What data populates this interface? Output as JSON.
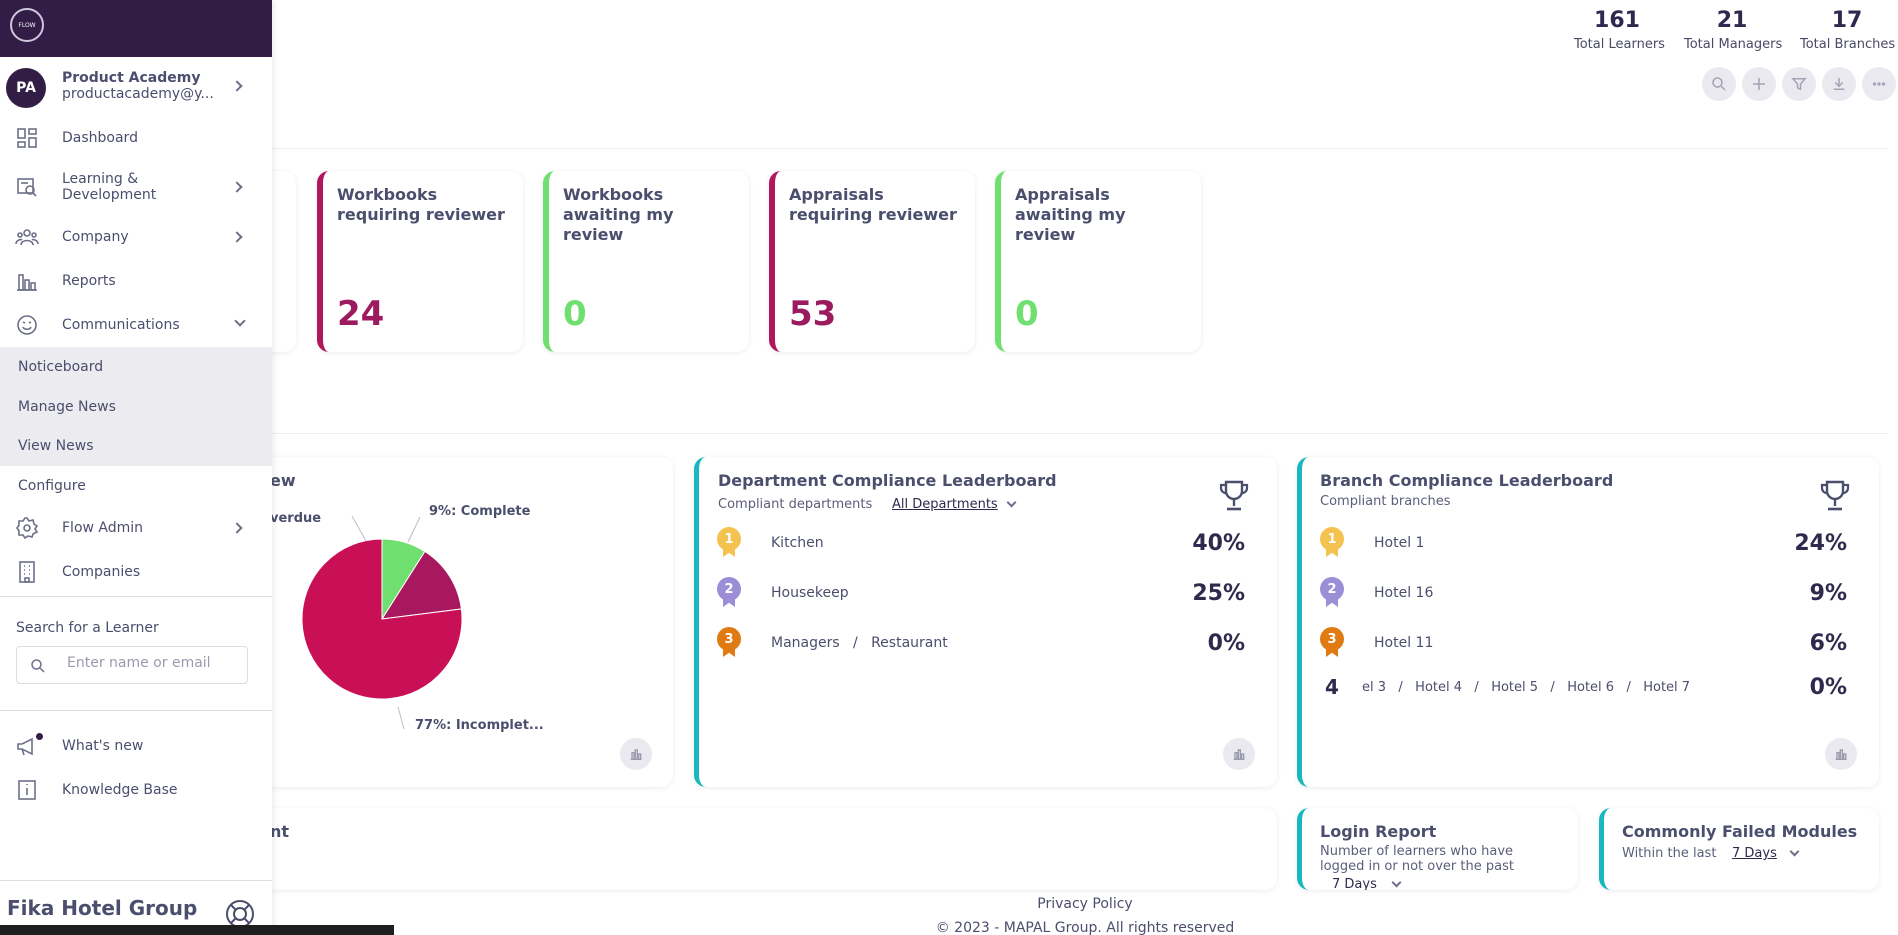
{
  "stats": [
    {
      "value": "161",
      "label": "Total Learners"
    },
    {
      "value": "21",
      "label": "Total Managers"
    },
    {
      "value": "17",
      "label": "Total Branches"
    }
  ],
  "kpis": [
    {
      "title": "Workbooks requiring reviewer",
      "value": "24",
      "color": "#9b1b5e"
    },
    {
      "title": "Workbooks awaiting my review",
      "value": "0",
      "color": "#6fe06f"
    },
    {
      "title": "Appraisals requiring reviewer",
      "value": "53",
      "color": "#9b1b5e"
    },
    {
      "title": "Appraisals awaiting my review",
      "value": "0",
      "color": "#6fe06f"
    }
  ],
  "overview": {
    "title": "ew",
    "labels": {
      "overdue": "verdue",
      "complete": "9%: Complete",
      "incomplete": "77%: Incomplet..."
    }
  },
  "chart_data": {
    "type": "pie",
    "slices": [
      {
        "label": "Complete",
        "value": 9,
        "color": "#6fe06f"
      },
      {
        "label": "Overdue",
        "value": 14,
        "color": "#a8185f"
      },
      {
        "label": "Incomplete",
        "value": 77,
        "color": "#c90f55"
      }
    ]
  },
  "dept": {
    "title": "Department Compliance Leaderboard",
    "subtitle": "Compliant departments",
    "filter": "All Departments",
    "rows": [
      {
        "rank": "1",
        "name": "Kitchen",
        "pct": "40%"
      },
      {
        "rank": "2",
        "name": "Housekeep",
        "pct": "25%"
      },
      {
        "rank": "3",
        "name": "Managers   /   Restaurant",
        "pct": "0%"
      }
    ]
  },
  "branch": {
    "title": "Branch Compliance Leaderboard",
    "subtitle": "Compliant branches",
    "rows": [
      {
        "rank": "1",
        "name": "Hotel 1",
        "pct": "24%"
      },
      {
        "rank": "2",
        "name": "Hotel 16",
        "pct": "9%"
      },
      {
        "rank": "3",
        "name": "Hotel 11",
        "pct": "6%"
      },
      {
        "rank": "4",
        "name": "el 3   /   Hotel 4   /   Hotel 5   /   Hotel 6   /   Hotel 7",
        "pct": "0%"
      }
    ]
  },
  "bottom": {
    "left_title": "nt",
    "login": {
      "title": "Login Report",
      "subtitle": "Number of learners who have logged in or not over the past",
      "filter": "7 Days"
    },
    "failed": {
      "title": "Commonly Failed Modules",
      "subtitle": "Within the last",
      "filter": "7 Days"
    }
  },
  "footer": {
    "privacy": "Privacy Policy",
    "copyright": "© 2023 - MAPAL Group. All rights reserved"
  },
  "sidebar": {
    "logo_text": "FLOW",
    "user": {
      "initials": "PA",
      "name": "Product Academy",
      "email": "productacademy@y..."
    },
    "nav": [
      {
        "label": "Dashboard",
        "icon": "dashboard-icon"
      },
      {
        "label": "Learning & Development",
        "icon": "learning-icon"
      },
      {
        "label": "Company",
        "icon": "people-icon"
      },
      {
        "label": "Reports",
        "icon": "bar-chart-icon"
      },
      {
        "label": "Communications",
        "icon": "smiley-icon"
      }
    ],
    "comms_sub": [
      "Noticeboard",
      "Manage News",
      "View News",
      "Configure"
    ],
    "nav2": [
      {
        "label": "Flow Admin",
        "icon": "gear-icon"
      },
      {
        "label": "Companies",
        "icon": "building-icon"
      }
    ],
    "search": {
      "label": "Search for a Learner",
      "placeholder": "Enter name or email"
    },
    "bottom_nav": [
      {
        "label": "What's new",
        "icon": "megaphone-icon"
      },
      {
        "label": "Knowledge Base",
        "icon": "info-icon"
      }
    ],
    "brand": "Fika Hotel Group"
  }
}
